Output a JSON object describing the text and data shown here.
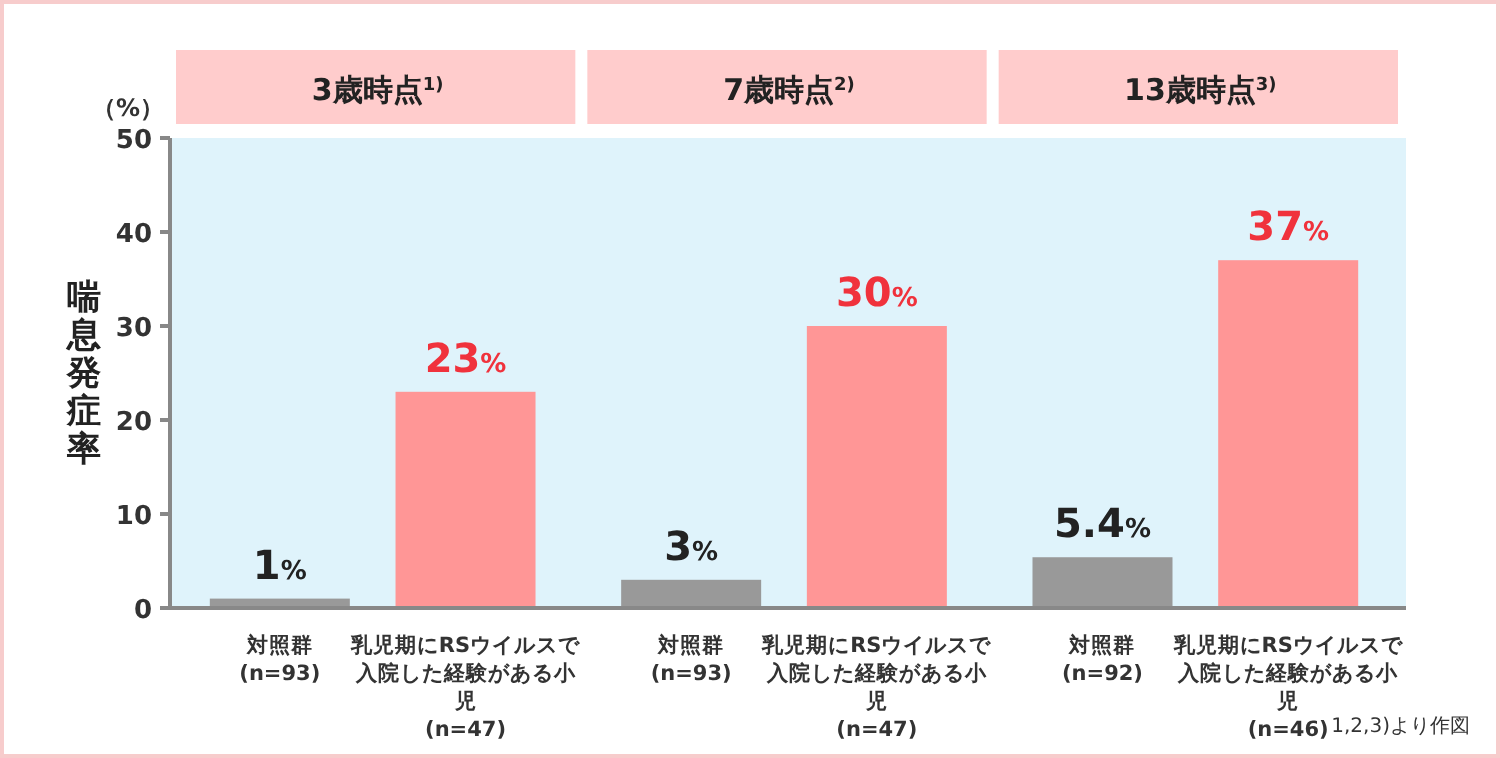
{
  "chart_data": {
    "type": "bar",
    "ylabel": "喘息発症率",
    "categories": [
      "対照群\n(n=93)",
      "乳児期にRSウイルスで入院した経験がある小児\n(n=47)",
      "対照群\n(n=93)",
      "乳児期にRSウイルスで入院した経験がある小児\n(n=47)",
      "対照群\n(n=92)",
      "乳児期にRSウイルスで入院した経験がある小児\n(n=46)"
    ],
    "values": [
      1,
      23,
      3,
      30,
      5.4,
      37
    ],
    "colors": [
      "#999999",
      "#ff9696",
      "#999999",
      "#ff9696",
      "#999999",
      "#ff9696"
    ],
    "value_labels": [
      "1%",
      "23%",
      "3%",
      "30%",
      "5.4%",
      "37%"
    ],
    "ylim": [
      0,
      50
    ],
    "yticks": [
      0,
      10,
      20,
      30,
      40,
      50
    ],
    "annotations": [
      "3歳時点$^{1)}$",
      "7歳時点$^{2)}$",
      "13歳時点$^{3)}$",
      "（%）",
      "1,2,3)より作図"
    ]
  }
}
